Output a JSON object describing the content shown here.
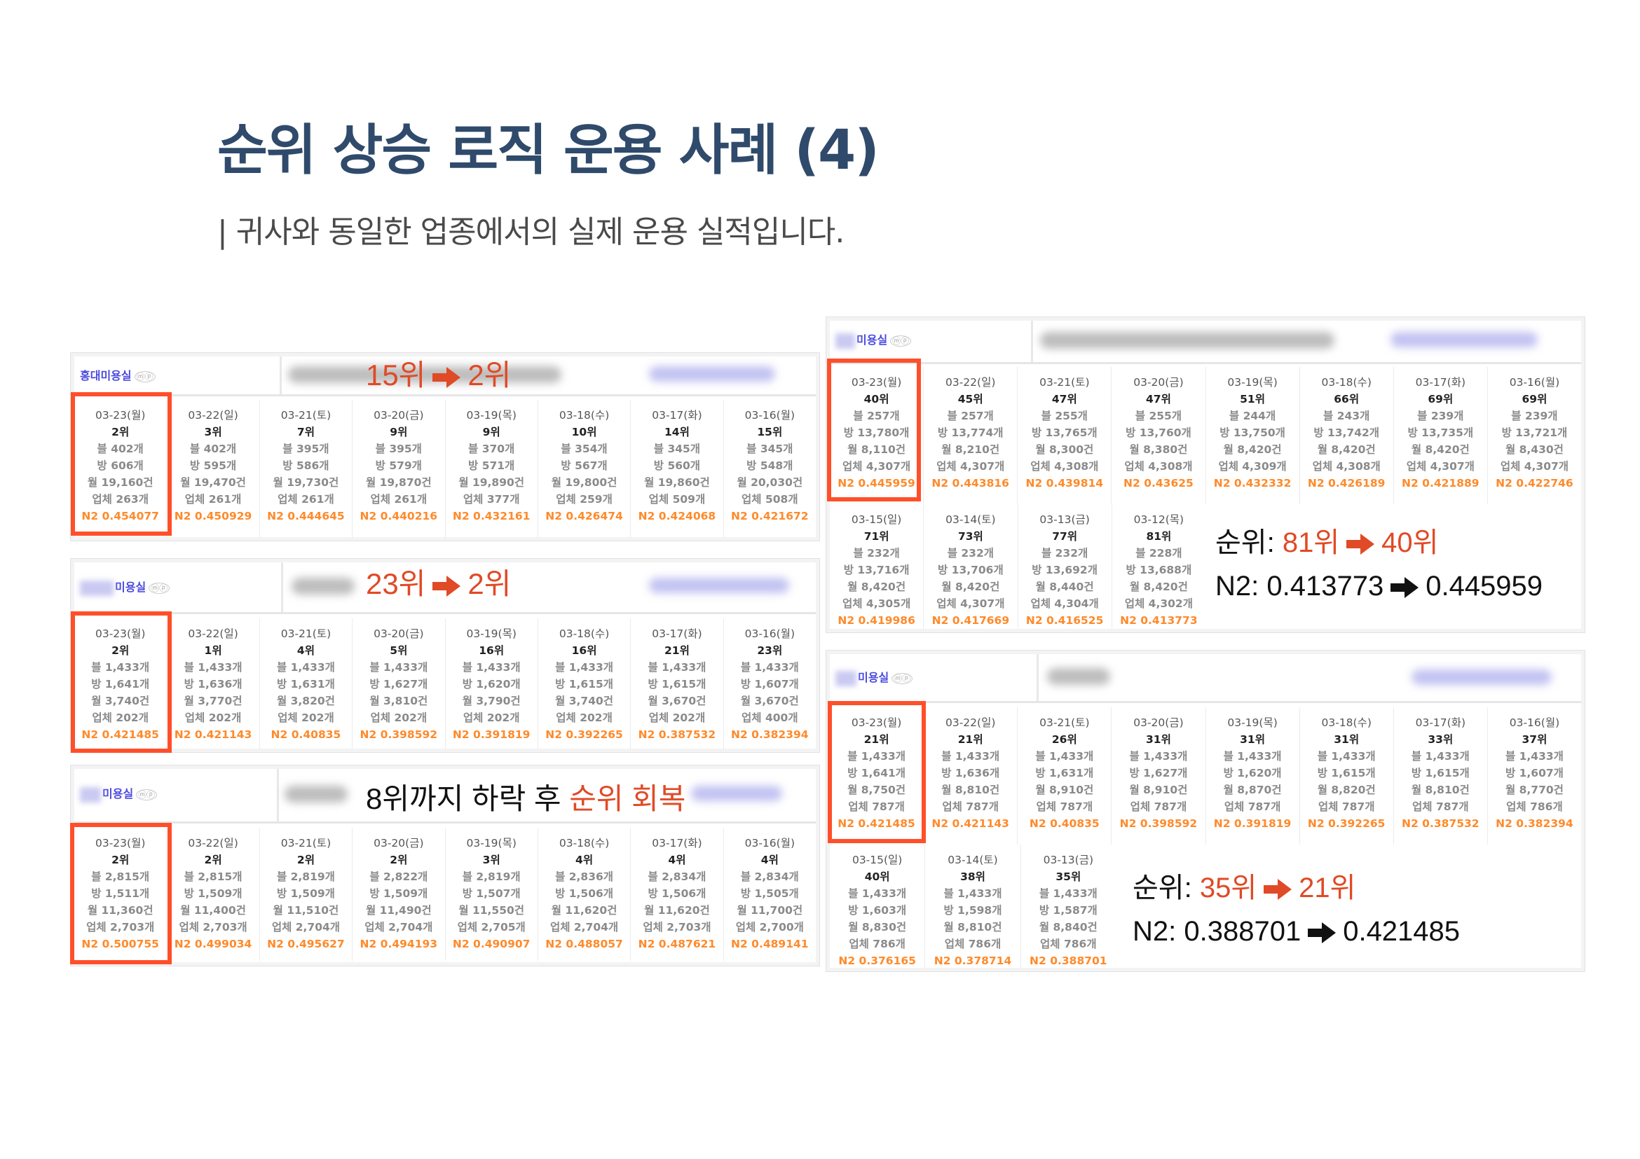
{
  "header": {
    "title": "순위 상승 로직 운용 사례 (4)",
    "subtitle": "| 귀사와 동일한 업종에서의 실제 운용 실적입니다."
  },
  "colors": {
    "title": "#2f4a6b",
    "accent_red": "#e04a26",
    "highlight_border": "#ff4f2a",
    "n2_orange": "#ff8a2a",
    "shop_link": "#4a4ae0"
  },
  "panels": [
    {
      "shop_name": "홍대미용실",
      "shop_badges": "ⓜⓟ",
      "annotation": {
        "from": "15위",
        "to": "2위"
      },
      "days": [
        {
          "date": "03-23(월)",
          "rank": "2위",
          "blog": "블 402개",
          "bang": "방 606개",
          "month": "월 19,160건",
          "biz": "업체 263개",
          "n2": "N2 0.454077"
        },
        {
          "date": "03-22(일)",
          "rank": "3위",
          "blog": "블 402개",
          "bang": "방 595개",
          "month": "월 19,470건",
          "biz": "업체 261개",
          "n2": "N2 0.450929"
        },
        {
          "date": "03-21(토)",
          "rank": "7위",
          "blog": "블 395개",
          "bang": "방 586개",
          "month": "월 19,730건",
          "biz": "업체 261개",
          "n2": "N2 0.444645"
        },
        {
          "date": "03-20(금)",
          "rank": "9위",
          "blog": "블 395개",
          "bang": "방 579개",
          "month": "월 19,870건",
          "biz": "업체 261개",
          "n2": "N2 0.440216"
        },
        {
          "date": "03-19(목)",
          "rank": "9위",
          "blog": "블 370개",
          "bang": "방 571개",
          "month": "월 19,890건",
          "biz": "업체 377개",
          "n2": "N2 0.432161"
        },
        {
          "date": "03-18(수)",
          "rank": "10위",
          "blog": "블 354개",
          "bang": "방 567개",
          "month": "월 19,800건",
          "biz": "업체 259개",
          "n2": "N2 0.426474"
        },
        {
          "date": "03-17(화)",
          "rank": "14위",
          "blog": "블 345개",
          "bang": "방 560개",
          "month": "월 19,860건",
          "biz": "업체 509개",
          "n2": "N2 0.424068"
        },
        {
          "date": "03-16(월)",
          "rank": "15위",
          "blog": "블 345개",
          "bang": "방 548개",
          "month": "월 20,030건",
          "biz": "업체 508개",
          "n2": "N2 0.421672"
        }
      ]
    },
    {
      "shop_name": "미용실",
      "shop_badges": "ⓜⓟ",
      "annotation": {
        "from": "23위",
        "to": "2위"
      },
      "days": [
        {
          "date": "03-23(월)",
          "rank": "2위",
          "blog": "블 1,433개",
          "bang": "방 1,641개",
          "month": "월 3,740건",
          "biz": "업체 202개",
          "n2": "N2 0.421485"
        },
        {
          "date": "03-22(일)",
          "rank": "1위",
          "blog": "블 1,433개",
          "bang": "방 1,636개",
          "month": "월 3,770건",
          "biz": "업체 202개",
          "n2": "N2 0.421143"
        },
        {
          "date": "03-21(토)",
          "rank": "4위",
          "blog": "블 1,433개",
          "bang": "방 1,631개",
          "month": "월 3,820건",
          "biz": "업체 202개",
          "n2": "N2 0.40835"
        },
        {
          "date": "03-20(금)",
          "rank": "5위",
          "blog": "블 1,433개",
          "bang": "방 1,627개",
          "month": "월 3,810건",
          "biz": "업체 202개",
          "n2": "N2 0.398592"
        },
        {
          "date": "03-19(목)",
          "rank": "16위",
          "blog": "블 1,433개",
          "bang": "방 1,620개",
          "month": "월 3,790건",
          "biz": "업체 202개",
          "n2": "N2 0.391819"
        },
        {
          "date": "03-18(수)",
          "rank": "16위",
          "blog": "블 1,433개",
          "bang": "방 1,615개",
          "month": "월 3,740건",
          "biz": "업체 202개",
          "n2": "N2 0.392265"
        },
        {
          "date": "03-17(화)",
          "rank": "21위",
          "blog": "블 1,433개",
          "bang": "방 1,615개",
          "month": "월 3,670건",
          "biz": "업체 202개",
          "n2": "N2 0.387532"
        },
        {
          "date": "03-16(월)",
          "rank": "23위",
          "blog": "블 1,433개",
          "bang": "방 1,607개",
          "month": "월 3,670건",
          "biz": "업체 400개",
          "n2": "N2 0.382394"
        }
      ]
    },
    {
      "shop_name": "미용실",
      "shop_badges": "ⓜⓟ",
      "annotation": {
        "prefix": "8위까지 하락 후 ",
        "highlight": "순위 회복"
      },
      "days": [
        {
          "date": "03-23(월)",
          "rank": "2위",
          "blog": "블 2,815개",
          "bang": "방 1,511개",
          "month": "월 11,360건",
          "biz": "업체 2,703개",
          "n2": "N2 0.500755"
        },
        {
          "date": "03-22(일)",
          "rank": "2위",
          "blog": "블 2,815개",
          "bang": "방 1,509개",
          "month": "월 11,400건",
          "biz": "업체 2,703개",
          "n2": "N2 0.499034"
        },
        {
          "date": "03-21(토)",
          "rank": "2위",
          "blog": "블 2,819개",
          "bang": "방 1,509개",
          "month": "월 11,510건",
          "biz": "업체 2,704개",
          "n2": "N2 0.495627"
        },
        {
          "date": "03-20(금)",
          "rank": "2위",
          "blog": "블 2,822개",
          "bang": "방 1,509개",
          "month": "월 11,490건",
          "biz": "업체 2,704개",
          "n2": "N2 0.494193"
        },
        {
          "date": "03-19(목)",
          "rank": "3위",
          "blog": "블 2,819개",
          "bang": "방 1,507개",
          "month": "월 11,550건",
          "biz": "업체 2,705개",
          "n2": "N2 0.490907"
        },
        {
          "date": "03-18(수)",
          "rank": "4위",
          "blog": "블 2,836개",
          "bang": "방 1,506개",
          "month": "월 11,620건",
          "biz": "업체 2,704개",
          "n2": "N2 0.488057"
        },
        {
          "date": "03-17(화)",
          "rank": "4위",
          "blog": "블 2,834개",
          "bang": "방 1,506개",
          "month": "월 11,620건",
          "biz": "업체 2,703개",
          "n2": "N2 0.487621"
        },
        {
          "date": "03-16(월)",
          "rank": "4위",
          "blog": "블 2,834개",
          "bang": "방 1,505개",
          "month": "월 11,700건",
          "biz": "업체 2,700개",
          "n2": "N2 0.489141"
        }
      ]
    },
    {
      "shop_name": "미용실",
      "shop_badges": "ⓜⓟ",
      "summary": {
        "rank_label": "순위: ",
        "rank_from": "81위",
        "rank_to": "40위",
        "n2_label": "N2: ",
        "n2_from": "0.413773",
        "n2_to": "0.445959"
      },
      "days": [
        {
          "date": "03-23(월)",
          "rank": "40위",
          "blog": "블 257개",
          "bang": "방 13,780개",
          "month": "월 8,110건",
          "biz": "업체 4,307개",
          "n2": "N2 0.445959"
        },
        {
          "date": "03-22(일)",
          "rank": "45위",
          "blog": "블 257개",
          "bang": "방 13,774개",
          "month": "월 8,210건",
          "biz": "업체 4,307개",
          "n2": "N2 0.443816"
        },
        {
          "date": "03-21(토)",
          "rank": "47위",
          "blog": "블 255개",
          "bang": "방 13,765개",
          "month": "월 8,300건",
          "biz": "업체 4,308개",
          "n2": "N2 0.439814"
        },
        {
          "date": "03-20(금)",
          "rank": "47위",
          "blog": "블 255개",
          "bang": "방 13,760개",
          "month": "월 8,380건",
          "biz": "업체 4,308개",
          "n2": "N2 0.43625"
        },
        {
          "date": "03-19(목)",
          "rank": "51위",
          "blog": "블 244개",
          "bang": "방 13,750개",
          "month": "월 8,420건",
          "biz": "업체 4,309개",
          "n2": "N2 0.432332"
        },
        {
          "date": "03-18(수)",
          "rank": "66위",
          "blog": "블 243개",
          "bang": "방 13,742개",
          "month": "월 8,420건",
          "biz": "업체 4,308개",
          "n2": "N2 0.426189"
        },
        {
          "date": "03-17(화)",
          "rank": "69위",
          "blog": "블 239개",
          "bang": "방 13,735개",
          "month": "월 8,420건",
          "biz": "업체 4,307개",
          "n2": "N2 0.421889"
        },
        {
          "date": "03-16(월)",
          "rank": "69위",
          "blog": "블 239개",
          "bang": "방 13,721개",
          "month": "월 8,430건",
          "biz": "업체 4,307개",
          "n2": "N2 0.422746"
        }
      ],
      "days2": [
        {
          "date": "03-15(일)",
          "rank": "71위",
          "blog": "블 232개",
          "bang": "방 13,716개",
          "month": "월 8,420건",
          "biz": "업체 4,305개",
          "n2": "N2 0.419986"
        },
        {
          "date": "03-14(토)",
          "rank": "73위",
          "blog": "블 232개",
          "bang": "방 13,706개",
          "month": "월 8,420건",
          "biz": "업체 4,307개",
          "n2": "N2 0.417669"
        },
        {
          "date": "03-13(금)",
          "rank": "77위",
          "blog": "블 232개",
          "bang": "방 13,692개",
          "month": "월 8,440건",
          "biz": "업체 4,304개",
          "n2": "N2 0.416525"
        },
        {
          "date": "03-12(목)",
          "rank": "81위",
          "blog": "블 228개",
          "bang": "방 13,688개",
          "month": "월 8,420건",
          "biz": "업체 4,302개",
          "n2": "N2 0.413773"
        }
      ]
    },
    {
      "shop_name": "미용실",
      "shop_badges": "ⓜⓟ",
      "summary": {
        "rank_label": "순위: ",
        "rank_from": "35위",
        "rank_to": "21위",
        "n2_label": "N2: ",
        "n2_from": "0.388701",
        "n2_to": "0.421485"
      },
      "days": [
        {
          "date": "03-23(월)",
          "rank": "21위",
          "blog": "블 1,433개",
          "bang": "방 1,641개",
          "month": "월 8,750건",
          "biz": "업체 787개",
          "n2": "N2 0.421485"
        },
        {
          "date": "03-22(일)",
          "rank": "21위",
          "blog": "블 1,433개",
          "bang": "방 1,636개",
          "month": "월 8,810건",
          "biz": "업체 787개",
          "n2": "N2 0.421143"
        },
        {
          "date": "03-21(토)",
          "rank": "26위",
          "blog": "블 1,433개",
          "bang": "방 1,631개",
          "month": "월 8,910건",
          "biz": "업체 787개",
          "n2": "N2 0.40835"
        },
        {
          "date": "03-20(금)",
          "rank": "31위",
          "blog": "블 1,433개",
          "bang": "방 1,627개",
          "month": "월 8,910건",
          "biz": "업체 787개",
          "n2": "N2 0.398592"
        },
        {
          "date": "03-19(목)",
          "rank": "31위",
          "blog": "블 1,433개",
          "bang": "방 1,620개",
          "month": "월 8,870건",
          "biz": "업체 787개",
          "n2": "N2 0.391819"
        },
        {
          "date": "03-18(수)",
          "rank": "31위",
          "blog": "블 1,433개",
          "bang": "방 1,615개",
          "month": "월 8,820건",
          "biz": "업체 787개",
          "n2": "N2 0.392265"
        },
        {
          "date": "03-17(화)",
          "rank": "33위",
          "blog": "블 1,433개",
          "bang": "방 1,615개",
          "month": "월 8,810건",
          "biz": "업체 787개",
          "n2": "N2 0.387532"
        },
        {
          "date": "03-16(월)",
          "rank": "37위",
          "blog": "블 1,433개",
          "bang": "방 1,607개",
          "month": "월 8,770건",
          "biz": "업체 786개",
          "n2": "N2 0.382394"
        }
      ],
      "days2": [
        {
          "date": "03-15(일)",
          "rank": "40위",
          "blog": "블 1,433개",
          "bang": "방 1,603개",
          "month": "월 8,830건",
          "biz": "업체 786개",
          "n2": "N2 0.376165"
        },
        {
          "date": "03-14(토)",
          "rank": "38위",
          "blog": "블 1,433개",
          "bang": "방 1,598개",
          "month": "월 8,810건",
          "biz": "업체 786개",
          "n2": "N2 0.378714"
        },
        {
          "date": "03-13(금)",
          "rank": "35위",
          "blog": "블 1,433개",
          "bang": "방 1,587개",
          "month": "월 8,840건",
          "biz": "업체 786개",
          "n2": "N2 0.388701"
        }
      ]
    }
  ]
}
